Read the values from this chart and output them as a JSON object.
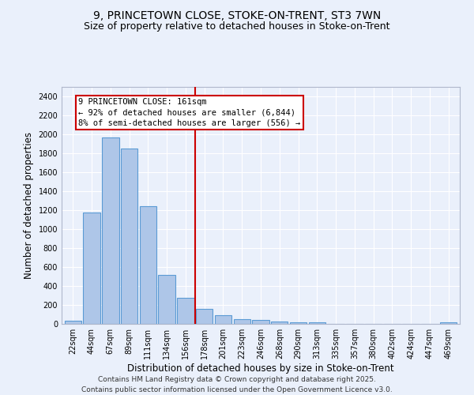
{
  "title_line1": "9, PRINCETOWN CLOSE, STOKE-ON-TRENT, ST3 7WN",
  "title_line2": "Size of property relative to detached houses in Stoke-on-Trent",
  "xlabel": "Distribution of detached houses by size in Stoke-on-Trent",
  "ylabel": "Number of detached properties",
  "categories": [
    "22sqm",
    "44sqm",
    "67sqm",
    "89sqm",
    "111sqm",
    "134sqm",
    "156sqm",
    "178sqm",
    "201sqm",
    "223sqm",
    "246sqm",
    "268sqm",
    "290sqm",
    "313sqm",
    "335sqm",
    "357sqm",
    "380sqm",
    "402sqm",
    "424sqm",
    "447sqm",
    "469sqm"
  ],
  "values": [
    30,
    1175,
    1970,
    1850,
    1240,
    520,
    275,
    158,
    92,
    50,
    42,
    28,
    18,
    14,
    0,
    0,
    0,
    0,
    0,
    0,
    15
  ],
  "bar_color": "#aec6e8",
  "bar_edge_color": "#5b9bd5",
  "vline_x": 6.5,
  "vline_color": "#cc0000",
  "annotation_text": "9 PRINCETOWN CLOSE: 161sqm\n← 92% of detached houses are smaller (6,844)\n8% of semi-detached houses are larger (556) →",
  "annotation_box_color": "#ffffff",
  "annotation_box_edge_color": "#cc0000",
  "annotation_fontsize": 7.5,
  "ylim": [
    0,
    2500
  ],
  "yticks": [
    0,
    200,
    400,
    600,
    800,
    1000,
    1200,
    1400,
    1600,
    1800,
    2000,
    2200,
    2400
  ],
  "background_color": "#eaf0fb",
  "grid_color": "#ffffff",
  "footer_line1": "Contains HM Land Registry data © Crown copyright and database right 2025.",
  "footer_line2": "Contains public sector information licensed under the Open Government Licence v3.0.",
  "title_fontsize": 10,
  "subtitle_fontsize": 9,
  "xlabel_fontsize": 8.5,
  "ylabel_fontsize": 8.5,
  "tick_fontsize": 7,
  "footer_fontsize": 6.5
}
